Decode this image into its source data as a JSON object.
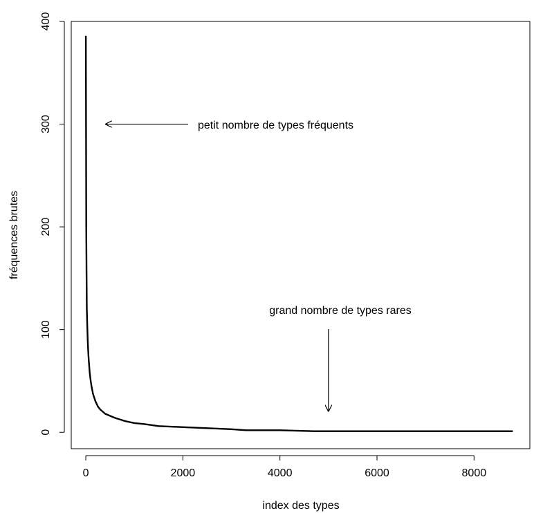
{
  "chart_data": {
    "type": "line",
    "title": "",
    "xlabel": "index des types",
    "ylabel": "fréquences brutes",
    "xlim": [
      -300,
      9150
    ],
    "ylim": [
      -16,
      400
    ],
    "xticks": [
      0,
      2000,
      4000,
      6000,
      8000
    ],
    "yticks": [
      0,
      100,
      200,
      300,
      400
    ],
    "grid": false,
    "series": [
      {
        "x": [
          1,
          3,
          6,
          10,
          15,
          20,
          30,
          40,
          50,
          60,
          80,
          100,
          120,
          150,
          200,
          250,
          300,
          400,
          500,
          600,
          800,
          1000,
          1200,
          1500,
          2000,
          2500,
          3000,
          3300,
          4000,
          4700,
          5000,
          6000,
          7000,
          8000,
          8800
        ],
        "y": [
          386,
          330,
          260,
          200,
          155,
          120,
          103,
          88,
          78,
          70,
          58,
          50,
          44,
          37,
          30,
          25,
          22,
          18,
          16,
          14,
          11,
          9,
          8,
          6,
          5,
          4,
          3,
          2,
          2,
          1,
          1,
          1,
          1,
          1,
          1
        ]
      }
    ],
    "annotations": [
      {
        "text": "petit nombre de types fréquents",
        "arrow_to": [
          400,
          300
        ],
        "arrow_direction": "left"
      },
      {
        "text": "grand nombre de types rares",
        "arrow_to": [
          5000,
          20
        ],
        "arrow_direction": "down"
      }
    ]
  }
}
